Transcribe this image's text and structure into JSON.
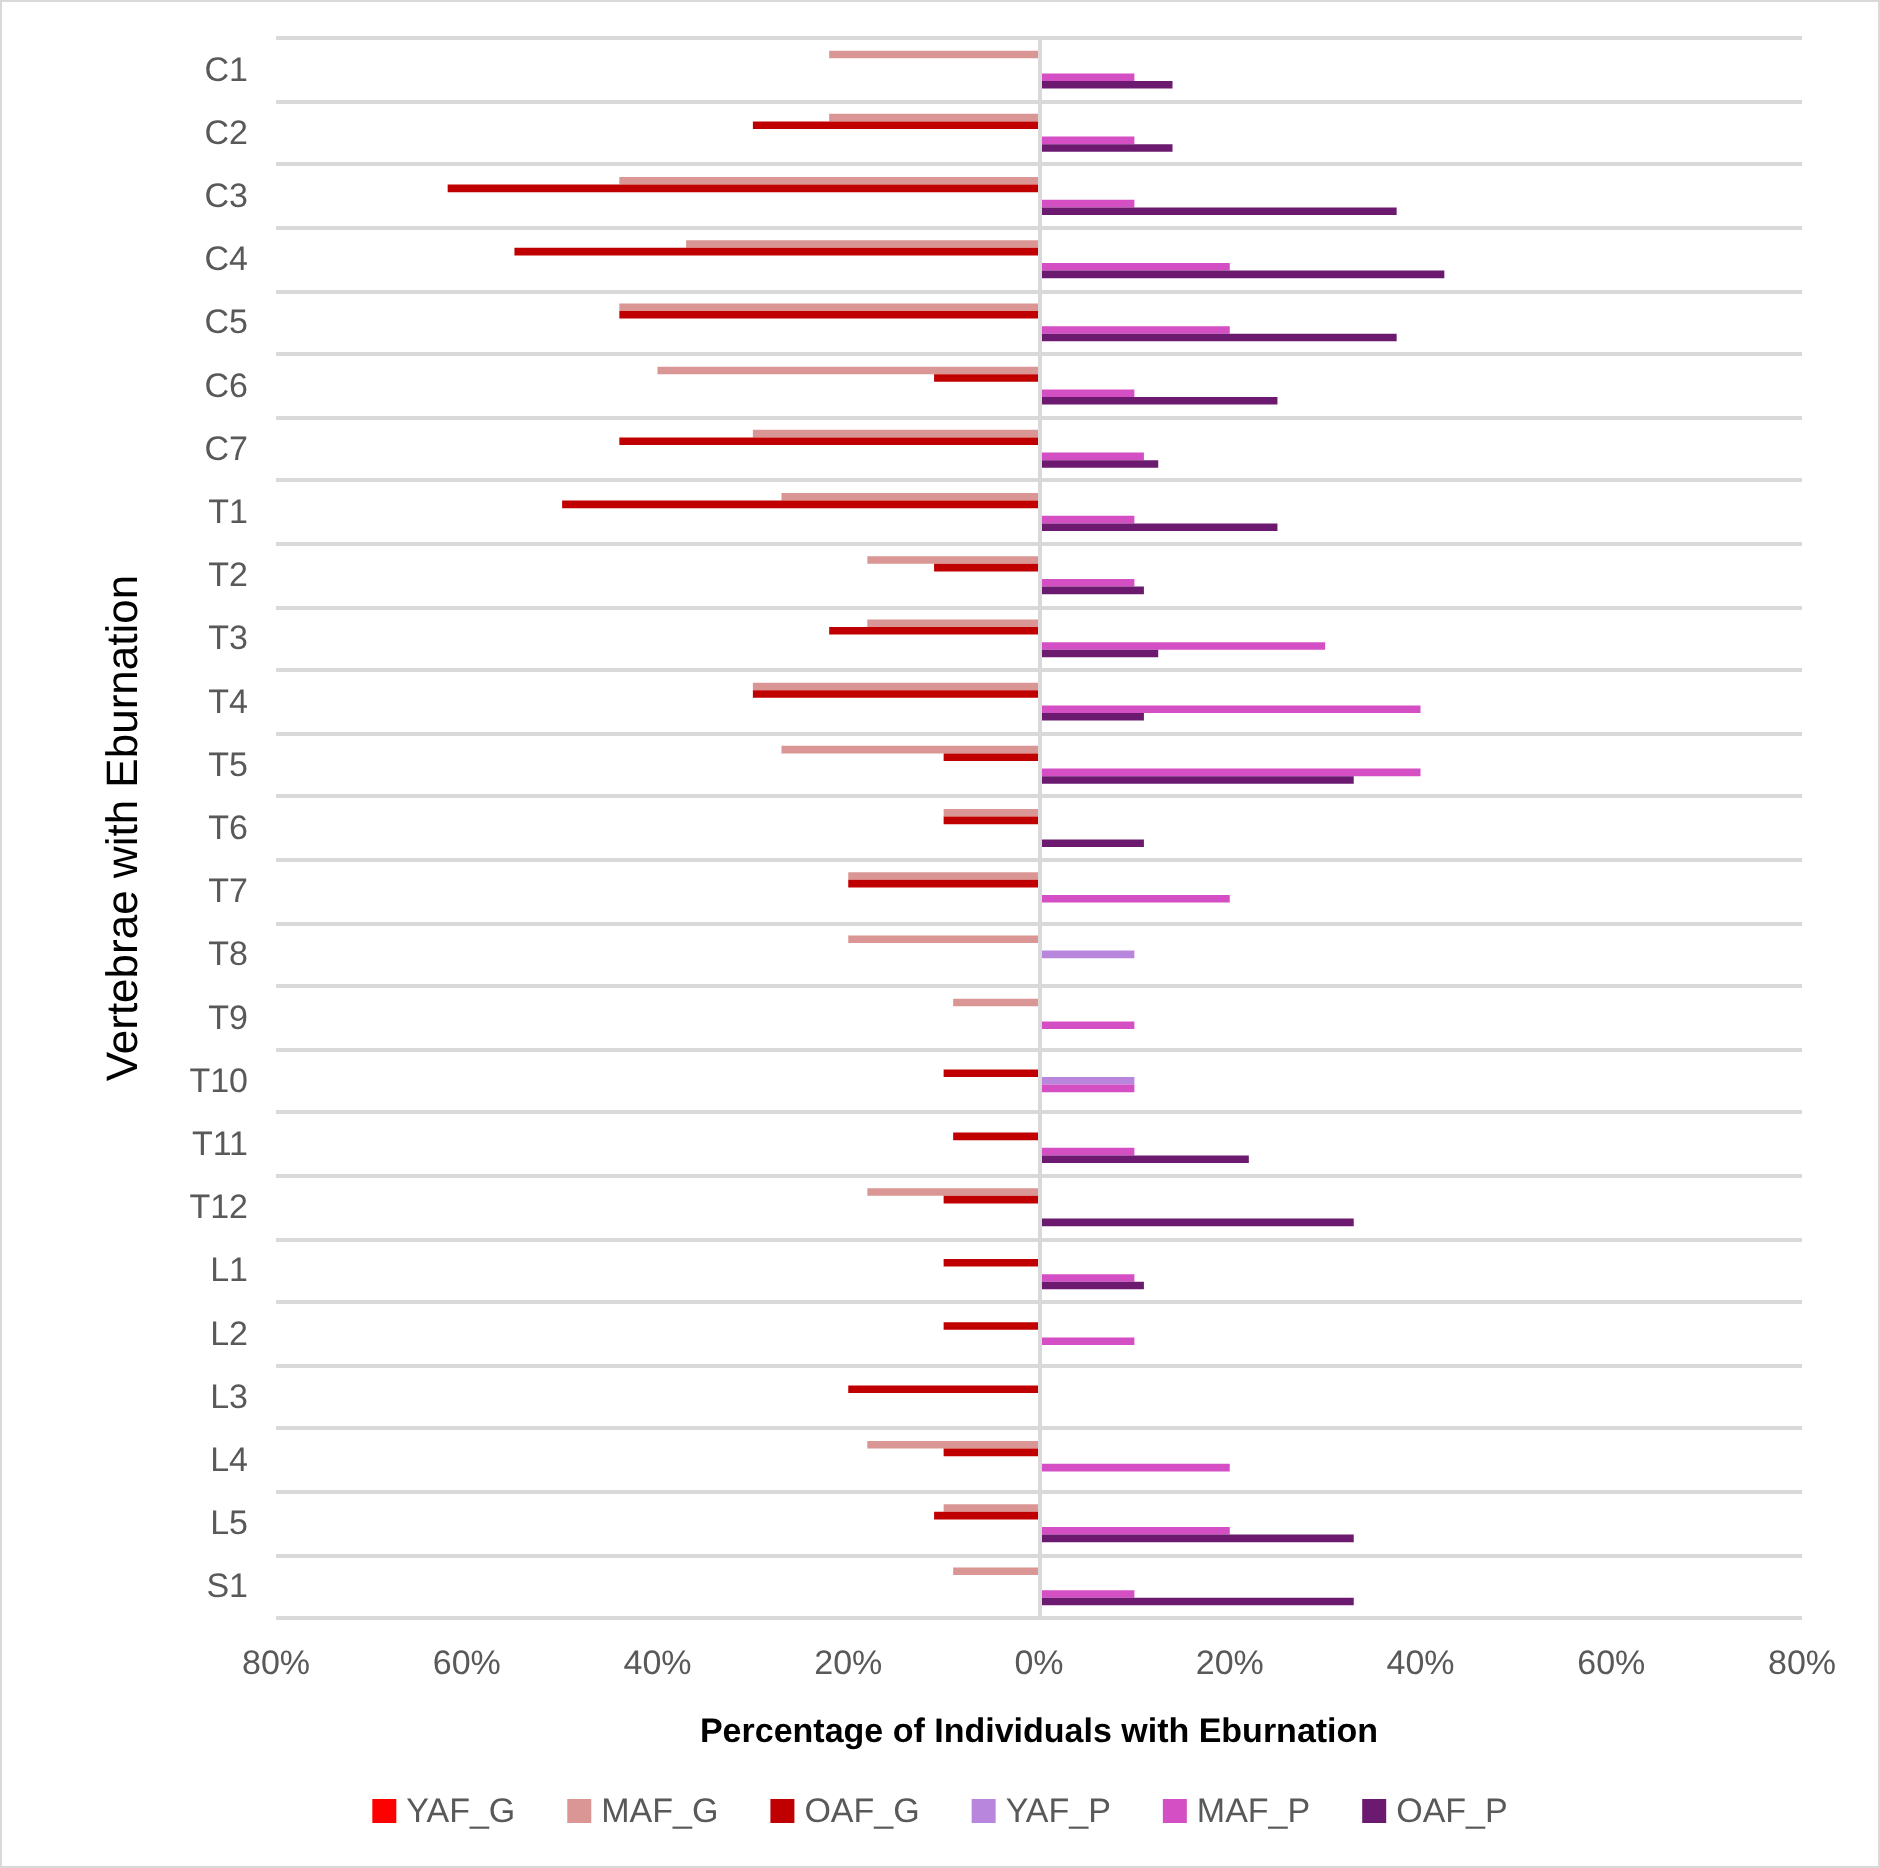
{
  "chart_data": {
    "type": "bar",
    "orientation": "horizontal",
    "xlabel": "Percentage of Individuals with Eburnation",
    "ylabel": "Vertebrae with Eburnation",
    "categories": [
      "C1",
      "C2",
      "C3",
      "C4",
      "C5",
      "C6",
      "C7",
      "T1",
      "T2",
      "T3",
      "T4",
      "T5",
      "T6",
      "T7",
      "T8",
      "T9",
      "T10",
      "T11",
      "T12",
      "L1",
      "L2",
      "L3",
      "L4",
      "L5",
      "S1"
    ],
    "series": [
      {
        "name": "YAF_G",
        "color": "#ff0000",
        "values": [
          null,
          null,
          null,
          null,
          null,
          null,
          null,
          null,
          null,
          null,
          null,
          null,
          null,
          null,
          null,
          null,
          null,
          null,
          null,
          null,
          null,
          null,
          null,
          null,
          null
        ]
      },
      {
        "name": "MAF_G",
        "color": "#d99694",
        "values": [
          -22,
          -22,
          -44,
          -37,
          -44,
          -40,
          -30,
          -27,
          -18,
          -18,
          -30,
          -27,
          -10,
          -20,
          -20,
          -9,
          null,
          null,
          -18,
          null,
          null,
          null,
          -18,
          -10,
          -9
        ]
      },
      {
        "name": "OAF_G",
        "color": "#c00000",
        "values": [
          null,
          -30,
          -62,
          -55,
          -44,
          -11,
          -44,
          -50,
          -11,
          -22,
          -30,
          -10,
          -10,
          -20,
          null,
          null,
          -10,
          -9,
          -10,
          -10,
          -10,
          -20,
          -10,
          -11,
          null
        ]
      },
      {
        "name": "YAF_P",
        "color": "#b886dc",
        "values": [
          null,
          null,
          null,
          null,
          null,
          null,
          null,
          null,
          null,
          null,
          null,
          null,
          null,
          null,
          10,
          null,
          10,
          null,
          null,
          null,
          null,
          null,
          null,
          null,
          null
        ]
      },
      {
        "name": "MAF_P",
        "color": "#d54fc4",
        "values": [
          10,
          10,
          10,
          20,
          20,
          10,
          11,
          10,
          10,
          30,
          40,
          40,
          null,
          20,
          null,
          10,
          10,
          10,
          null,
          10,
          10,
          null,
          20,
          20,
          10
        ]
      },
      {
        "name": "OAF_P",
        "color": "#6b1a6f",
        "values": [
          14,
          14,
          37.5,
          42.5,
          37.5,
          25,
          12.5,
          25,
          11,
          12.5,
          11,
          33,
          11,
          null,
          null,
          null,
          null,
          22,
          33,
          11,
          null,
          null,
          null,
          33,
          33
        ]
      }
    ],
    "xlim": [
      -80,
      80
    ],
    "xticks": [
      {
        "value": -80,
        "label": "80%"
      },
      {
        "value": -60,
        "label": "60%"
      },
      {
        "value": -40,
        "label": "40%"
      },
      {
        "value": -20,
        "label": "20%"
      },
      {
        "value": 0,
        "label": "0%"
      },
      {
        "value": 20,
        "label": "20%"
      },
      {
        "value": 40,
        "label": "40%"
      },
      {
        "value": 60,
        "label": "60%"
      },
      {
        "value": 80,
        "label": "80%"
      }
    ],
    "ref_lines": [
      {
        "axis": "x",
        "value": 0,
        "color": "#d9d9d9",
        "line_style": "solid"
      }
    ],
    "grid": "y",
    "legend": "bottom"
  }
}
